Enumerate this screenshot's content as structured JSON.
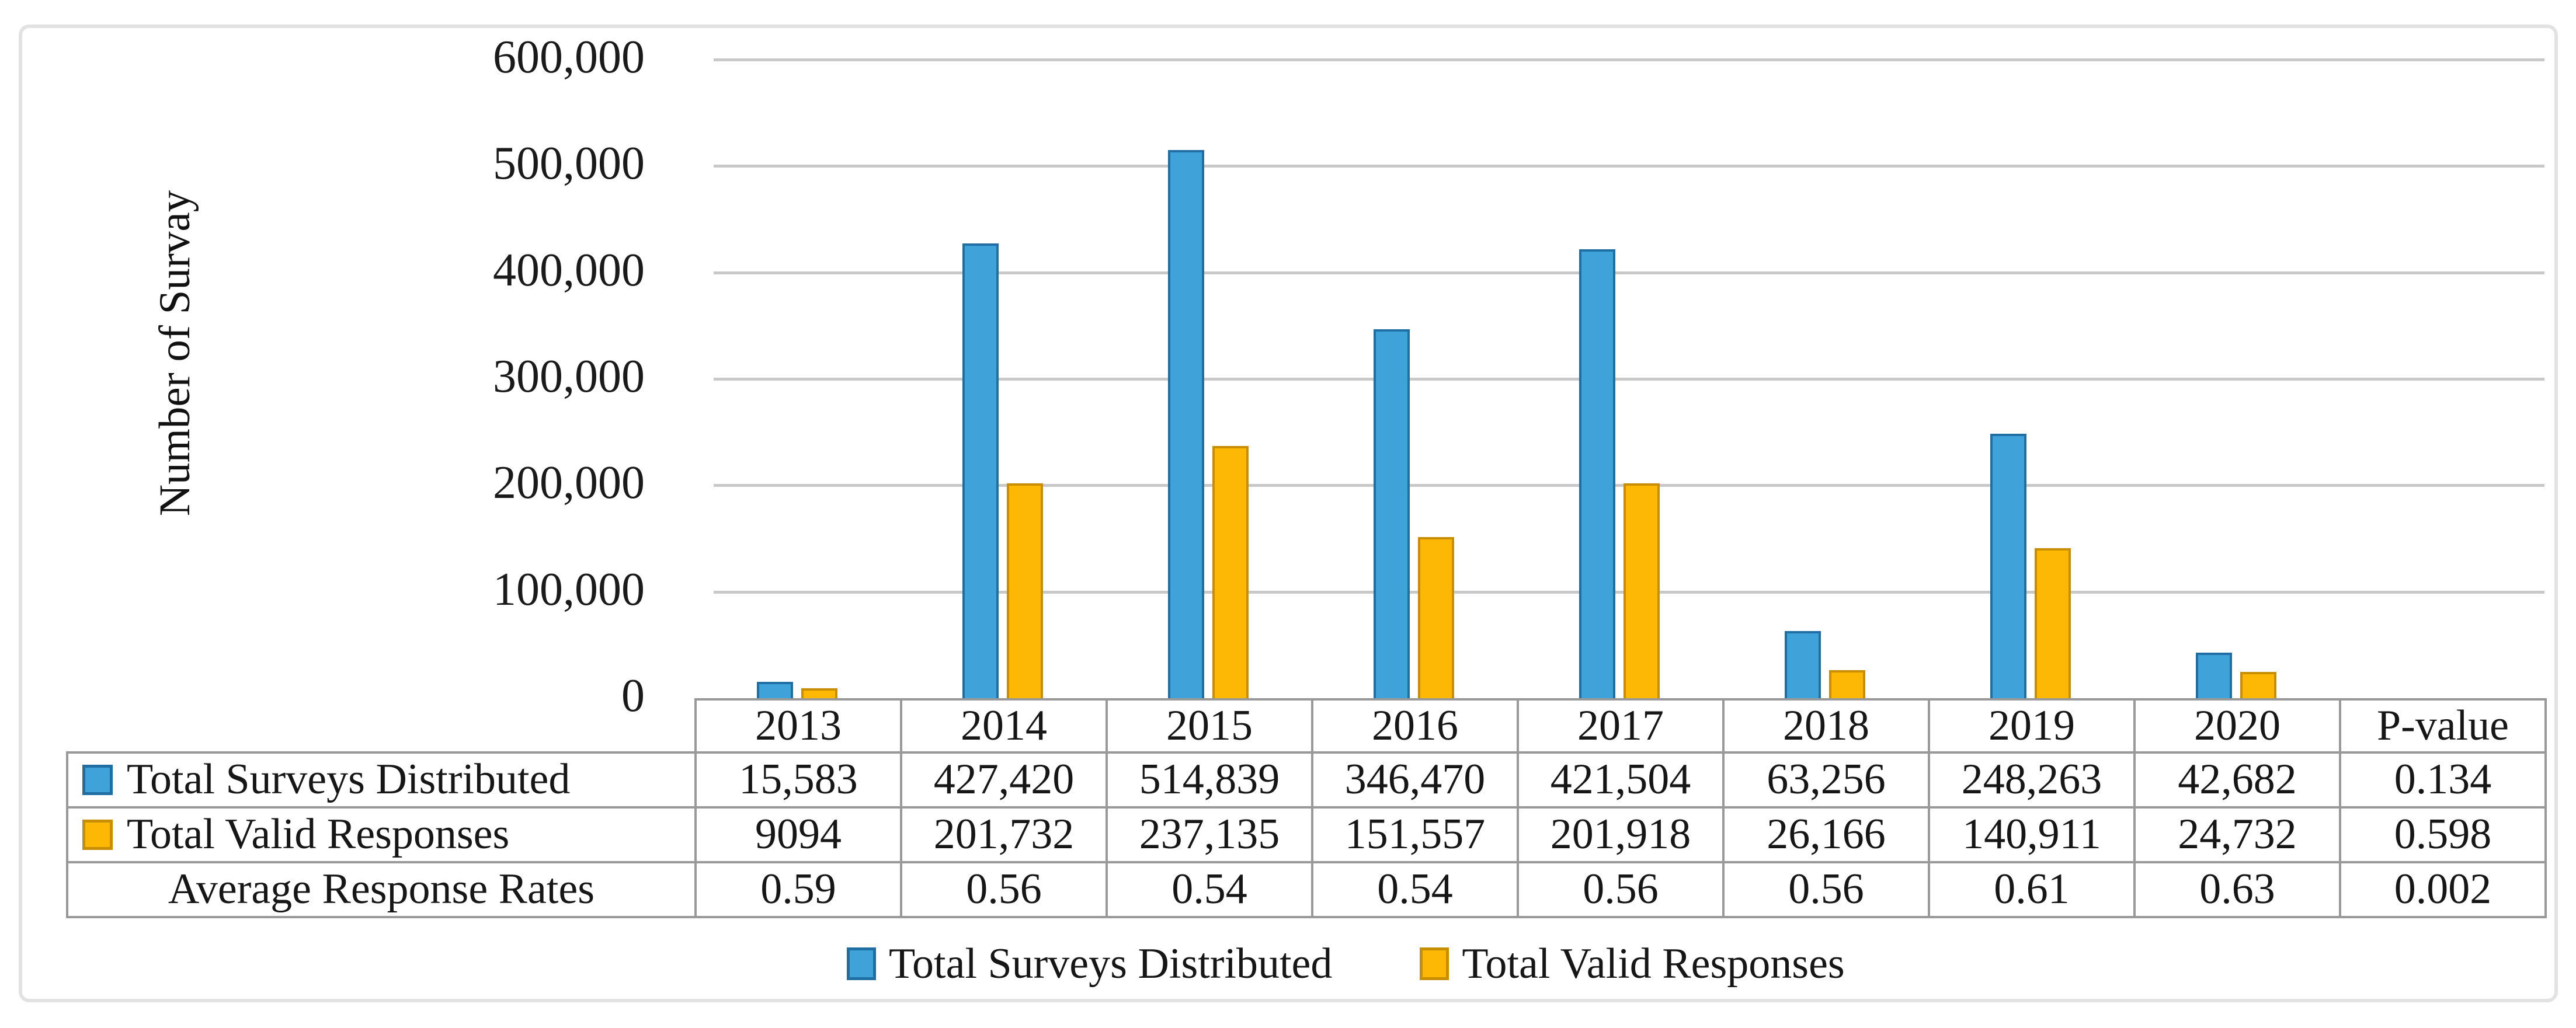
{
  "chart_data": {
    "type": "bar",
    "title": "",
    "xlabel": "",
    "ylabel": "Number of Survay",
    "categories": [
      "2013",
      "2014",
      "2015",
      "2016",
      "2017",
      "2018",
      "2019",
      "2020"
    ],
    "series": [
      {
        "name": "Total Surveys Distributed",
        "values": [
          15583,
          427420,
          514839,
          346470,
          421504,
          63256,
          248263,
          42682
        ],
        "color": "#3fa2d9",
        "border_color": "#1f6fa5"
      },
      {
        "name": "Total Valid Responses",
        "values": [
          9094,
          201732,
          237135,
          151557,
          201918,
          26166,
          140911,
          24732
        ],
        "color": "#fcb804",
        "border_color": "#c78f00"
      }
    ],
    "ylim": [
      0,
      600000
    ],
    "yticks": [
      "600,000",
      "500,000",
      "400,000",
      "300,000",
      "200,000",
      "100,000",
      "0"
    ],
    "grid": true,
    "legend_position": "bottom"
  },
  "table": {
    "columns": [
      "2013",
      "2014",
      "2015",
      "2016",
      "2017",
      "2018",
      "2019",
      "2020",
      "P-value"
    ],
    "rows": [
      {
        "label": "Total Surveys Distributed",
        "series_index": 0,
        "cells": [
          "15,583",
          "427,420",
          "514,839",
          "346,470",
          "421,504",
          "63,256",
          "248,263",
          "42,682",
          "0.134"
        ]
      },
      {
        "label": "Total Valid Responses",
        "series_index": 1,
        "cells": [
          "9094",
          "201,732",
          "237,135",
          "151,557",
          "201,918",
          "26,166",
          "140,911",
          "24,732",
          "0.598"
        ]
      },
      {
        "label": "Average Response Rates",
        "series_index": null,
        "cells": [
          "0.59",
          "0.56",
          "0.54",
          "0.54",
          "0.56",
          "0.56",
          "0.61",
          "0.63",
          "0.002"
        ]
      }
    ]
  },
  "legend": {
    "items": [
      {
        "label": "Total Surveys Distributed"
      },
      {
        "label": "Total Valid Responses"
      }
    ]
  }
}
